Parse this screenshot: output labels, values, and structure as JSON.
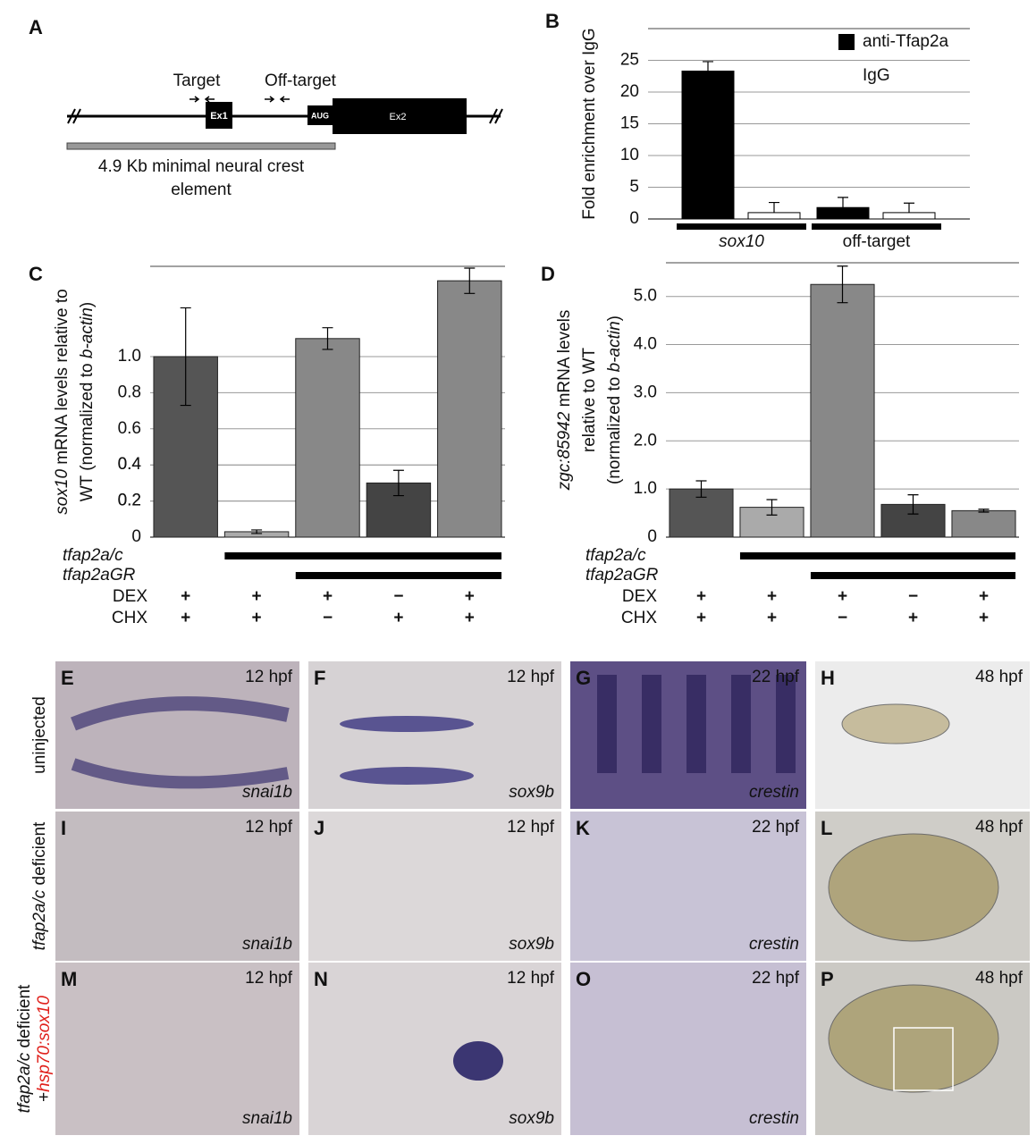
{
  "panel_A": {
    "letter": "A",
    "target": "Target",
    "off_target": "Off-target",
    "ex1": "Ex1",
    "aug": "AUG",
    "ex2": "Ex2",
    "element": [
      "4.9 Kb minimal neural crest",
      "element"
    ]
  },
  "chart_data": [
    {
      "type": "bar",
      "letter": "B",
      "ylabel": "Fold enrichment over IgG",
      "categories": [
        "sox10",
        "off-target"
      ],
      "series": [
        {
          "name": "anti-Tfap2a",
          "color": "#000000",
          "values": [
            23.3,
            1.8
          ],
          "errors": [
            1.5,
            1.6
          ]
        },
        {
          "name": "IgG",
          "color": "#ffffff",
          "values": [
            1,
            1
          ],
          "errors": [
            1.6,
            1.5
          ]
        }
      ],
      "ylim": [
        0,
        30
      ],
      "yticks": [
        0,
        5,
        10,
        15,
        20,
        25
      ],
      "grid": true
    },
    {
      "type": "bar",
      "letter": "C",
      "ylabel": [
        "sox10",
        " mRNA levels relative to",
        "WT (normalized to ",
        "b-actin",
        ")"
      ],
      "categories": [
        null,
        null,
        null,
        null,
        null
      ],
      "values": [
        1.0,
        0.03,
        1.1,
        0.3,
        1.42
      ],
      "errors": [
        0.27,
        0.01,
        0.06,
        0.07,
        0.07
      ],
      "colors": [
        "#555555",
        "#aaaaaa",
        "#888888",
        "#444444",
        "#888888"
      ],
      "ylim": [
        0,
        1.5
      ],
      "yticks": [
        0,
        0.2,
        0.4,
        0.6,
        0.8,
        {
          "value": 1,
          "label": "1.0"
        },
        0.2,
        0.4
      ],
      "grid": true,
      "groups": [
        {
          "name": "tfap2a/c",
          "present": [
            false,
            true,
            true,
            true,
            true
          ]
        },
        {
          "name": "tfap2aGR",
          "present": [
            false,
            false,
            true,
            true,
            true
          ]
        }
      ],
      "treatments": [
        {
          "name": "DEX",
          "signs": [
            "+",
            "+",
            "+",
            "−",
            "+"
          ]
        },
        {
          "name": "CHX",
          "signs": [
            "+",
            "+",
            "−",
            "+",
            "+"
          ]
        }
      ]
    },
    {
      "type": "bar",
      "letter": "D",
      "ylabel": [
        "zgc:85942",
        " mRNA levels",
        "relative to WT",
        "(normalized to ",
        "b-actin",
        ")"
      ],
      "categories": [
        null,
        null,
        null,
        null,
        null
      ],
      "values": [
        1.0,
        0.62,
        5.25,
        0.68,
        0.55
      ],
      "errors": [
        0.17,
        0.16,
        0.38,
        0.2,
        0.03
      ],
      "colors": [
        "#555555",
        "#aaaaaa",
        "#888888",
        "#444444",
        "#888888"
      ],
      "ylim": [
        0,
        5.7
      ],
      "yticks": [
        0,
        {
          "value": 1,
          "label": "1.0"
        },
        {
          "value": 2,
          "label": "2.0"
        },
        {
          "value": 3,
          "label": "3.0"
        },
        {
          "value": 4,
          "label": "4.0"
        },
        {
          "value": 5,
          "label": "5.0"
        }
      ],
      "grid": true,
      "groups": [
        {
          "name": "tfap2a/c",
          "present": [
            false,
            true,
            true,
            true,
            true
          ]
        },
        {
          "name": "tfap2aGR",
          "present": [
            false,
            false,
            true,
            true,
            true
          ]
        }
      ],
      "treatments": [
        {
          "name": "DEX",
          "signs": [
            "+",
            "+",
            "+",
            "−",
            "+"
          ]
        },
        {
          "name": "CHX",
          "signs": [
            "+",
            "+",
            "−",
            "+",
            "+"
          ]
        }
      ]
    }
  ],
  "images": {
    "row_labels": [
      [
        "uninjected"
      ],
      [
        "tfap2a/c",
        " deficient"
      ],
      [
        "tfap2a/c",
        " deficient",
        "+",
        "hsp70:sox10"
      ]
    ],
    "panels": [
      [
        {
          "letter": "E",
          "time": "12 hpf",
          "gene": "snai1b"
        },
        {
          "letter": "F",
          "time": "12 hpf",
          "gene": "sox9b"
        },
        {
          "letter": "G",
          "time": "22 hpf",
          "gene": "crestin"
        },
        {
          "letter": "H",
          "time": "48 hpf"
        }
      ],
      [
        {
          "letter": "I",
          "time": "12 hpf",
          "gene": "snai1b"
        },
        {
          "letter": "J",
          "time": "12 hpf",
          "gene": "sox9b"
        },
        {
          "letter": "K",
          "time": "22 hpf",
          "gene": "crestin"
        },
        {
          "letter": "L",
          "time": "48 hpf"
        }
      ],
      [
        {
          "letter": "M",
          "time": "12 hpf",
          "gene": "snai1b"
        },
        {
          "letter": "N",
          "time": "12 hpf",
          "gene": "sox9b"
        },
        {
          "letter": "O",
          "time": "22 hpf",
          "gene": "crestin"
        },
        {
          "letter": "P",
          "time": "48 hpf"
        }
      ]
    ]
  }
}
